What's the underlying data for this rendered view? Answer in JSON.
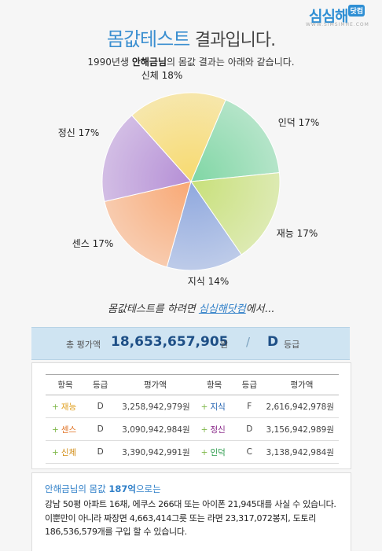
{
  "logo": {
    "text": "심심해",
    "badge": "닷컴",
    "url": "WWW.SIMSIMHE.COM"
  },
  "header": {
    "title_highlight": "몸값테스트",
    "title_rest": "결과입니다."
  },
  "subtitle": {
    "prefix": "1990년생",
    "name": "안해금님",
    "suffix": "의 몸값 결과는 아래와 같습니다."
  },
  "chart_data": {
    "type": "pie",
    "title": "",
    "slices": [
      {
        "label": "인덕 17%",
        "name": "인덕",
        "value": 17,
        "color": "#7fd6a4"
      },
      {
        "label": "재능 17%",
        "name": "재능",
        "value": 17,
        "color": "#c8e07a"
      },
      {
        "label": "지식 14%",
        "name": "지식",
        "value": 14,
        "color": "#8fa8de"
      },
      {
        "label": "센스 17%",
        "name": "센스",
        "value": 17,
        "color": "#f9a874"
      },
      {
        "label": "정신 17%",
        "name": "정신",
        "value": 17,
        "color": "#b58fd6"
      },
      {
        "label": "신체 18%",
        "name": "신체",
        "value": 18,
        "color": "#f7da6f"
      }
    ]
  },
  "handnote": {
    "text": "몸값테스트를 하려면 ",
    "link": "심심해닷컴",
    "after": "에서..."
  },
  "total": {
    "label": "총 평가액",
    "amount": "18,653,657,905",
    "unit": "원",
    "slash": "/",
    "grade": "D",
    "grade_label": "등급"
  },
  "table": {
    "headers": [
      "항목",
      "등급",
      "평가액",
      "항목",
      "등급",
      "평가액"
    ],
    "rows": [
      {
        "n1": "재능",
        "g1": "D",
        "v1": "3,258,942,979원",
        "n2": "지식",
        "g2": "F",
        "v2": "2,616,942,978원",
        "c1": "#e0a020",
        "c2": "#2060b0"
      },
      {
        "n1": "센스",
        "g1": "D",
        "v1": "3,090,942,984원",
        "n2": "정신",
        "g2": "D",
        "v2": "3,156,942,989원",
        "c1": "#e07020",
        "c2": "#8a2a8a"
      },
      {
        "n1": "신체",
        "g1": "D",
        "v1": "3,390,942,991원",
        "n2": "인덕",
        "g2": "C",
        "v2": "3,138,942,984원",
        "c1": "#d08a10",
        "c2": "#2a9a4a"
      }
    ]
  },
  "summary": {
    "head_prefix": "안해금님의 몸값 ",
    "head_amount": "187억",
    "head_suffix": "으로는",
    "body": "강남 50평 아파트 16채, 에쿠스 266대 또는 아이폰 21,945대를 사실 수 있습니다. 이뿐만이 아니라 짜장면 4,663,414그릇 또는 라면 23,317,072봉지, 도토리 186,536,579개를 구입 할 수 있습니다."
  }
}
